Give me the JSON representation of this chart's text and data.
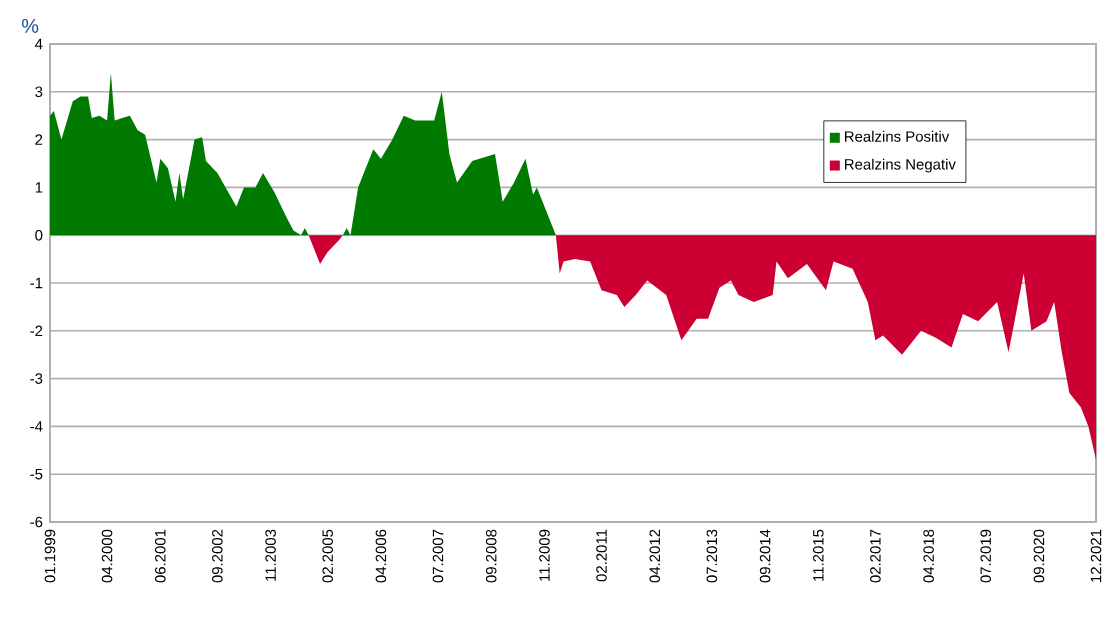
{
  "chart_data": {
    "type": "area",
    "ylabel": "%",
    "legend": "top right",
    "grid": "y",
    "xlim": [
      "1999-01",
      "2021-12"
    ],
    "ylim": [
      -6,
      4
    ],
    "yticks": [
      -6,
      -5,
      -4,
      -3,
      -2,
      -1,
      0,
      1,
      2,
      3,
      4
    ],
    "xticks": [
      {
        "value": "1999-01",
        "label": "01.1999"
      },
      {
        "value": "2000-04",
        "label": "04.2000"
      },
      {
        "value": "2001-06",
        "label": "06.2001"
      },
      {
        "value": "2002-09",
        "label": "09.2002"
      },
      {
        "value": "2003-11",
        "label": "11.2003"
      },
      {
        "value": "2005-02",
        "label": "02.2005"
      },
      {
        "value": "2006-04",
        "label": "04.2006"
      },
      {
        "value": "2007-07",
        "label": "07.2007"
      },
      {
        "value": "2008-09",
        "label": "09.2008"
      },
      {
        "value": "2009-11",
        "label": "11.2009"
      },
      {
        "value": "2011-02",
        "label": "02.2011"
      },
      {
        "value": "2012-04",
        "label": "04.2012"
      },
      {
        "value": "2013-07",
        "label": "07.2013"
      },
      {
        "value": "2014-09",
        "label": "09.2014"
      },
      {
        "value": "2015-11",
        "label": "11.2015"
      },
      {
        "value": "2017-02",
        "label": "02.2017"
      },
      {
        "value": "2018-04",
        "label": "04.2018"
      },
      {
        "value": "2019-07",
        "label": "07.2019"
      },
      {
        "value": "2020-09",
        "label": "09.2020"
      },
      {
        "value": "2021-12",
        "label": "12.2021"
      }
    ],
    "series": [
      {
        "name": "Realzins Positiv",
        "color": "#007a00",
        "x": [
          "1999-01",
          "1999-02",
          "1999-04",
          "1999-07",
          "1999-09",
          "1999-11",
          "1999-12",
          "2000-02",
          "2000-04",
          "2000-05",
          "2000-06",
          "2000-08",
          "2000-10",
          "2000-12",
          "2001-02",
          "2001-05",
          "2001-06",
          "2001-08",
          "2001-10",
          "2001-11",
          "2001-12",
          "2002-03",
          "2002-05",
          "2002-06",
          "2002-09",
          "2003-02",
          "2003-04",
          "2003-07",
          "2003-09",
          "2003-12",
          "2004-03",
          "2004-05",
          "2004-07",
          "2004-08",
          "2004-09",
          "2005-06",
          "2005-07",
          "2005-08",
          "2005-10",
          "2005-12",
          "2006-02",
          "2006-04",
          "2006-07",
          "2006-10",
          "2007-01",
          "2007-06",
          "2007-08",
          "2007-10",
          "2007-12",
          "2008-04",
          "2008-10",
          "2008-12",
          "2009-03",
          "2009-06",
          "2009-08",
          "2009-09",
          "2010-02"
        ],
        "values": [
          2.5,
          2.6,
          2.0,
          2.8,
          2.9,
          2.9,
          2.45,
          2.5,
          2.4,
          3.4,
          2.4,
          2.45,
          2.5,
          2.2,
          2.1,
          1.1,
          1.6,
          1.4,
          0.7,
          1.3,
          0.75,
          2.0,
          2.05,
          1.55,
          1.3,
          0.6,
          1.0,
          1.0,
          1.3,
          0.9,
          0.4,
          0.1,
          0.0,
          0.15,
          0.0,
          0.0,
          0.15,
          0.0,
          1.0,
          1.4,
          1.8,
          1.6,
          2.0,
          2.5,
          2.4,
          2.4,
          3.0,
          1.7,
          1.1,
          1.55,
          1.7,
          0.7,
          1.1,
          1.6,
          0.85,
          1.0,
          0.0
        ]
      },
      {
        "name": "Realzins Negativ",
        "color": "#cc0033",
        "x": [
          "2004-09",
          "2004-12",
          "2005-02",
          "2005-05",
          "2005-06",
          "2010-02",
          "2010-03",
          "2010-04",
          "2010-07",
          "2010-11",
          "2011-02",
          "2011-06",
          "2011-08",
          "2011-11",
          "2012-02",
          "2012-07",
          "2012-11",
          "2013-03",
          "2013-06",
          "2013-09",
          "2013-12",
          "2014-02",
          "2014-06",
          "2014-11",
          "2014-12",
          "2015-03",
          "2015-08",
          "2016-01",
          "2016-03",
          "2016-08",
          "2016-12",
          "2017-02",
          "2017-04",
          "2017-09",
          "2018-02",
          "2018-06",
          "2018-10",
          "2019-01",
          "2019-05",
          "2019-10",
          "2020-01",
          "2020-05",
          "2020-07",
          "2020-11",
          "2021-01",
          "2021-03",
          "2021-05",
          "2021-08",
          "2021-10",
          "2021-12"
        ],
        "values": [
          0.0,
          -0.6,
          -0.35,
          -0.1,
          0.0,
          0.0,
          -0.8,
          -0.55,
          -0.5,
          -0.55,
          -1.15,
          -1.25,
          -1.5,
          -1.25,
          -0.95,
          -1.25,
          -2.2,
          -1.75,
          -1.75,
          -1.1,
          -0.95,
          -1.25,
          -1.4,
          -1.25,
          -0.55,
          -0.9,
          -0.6,
          -1.15,
          -0.55,
          -0.7,
          -1.4,
          -2.2,
          -2.1,
          -2.5,
          -2.0,
          -2.15,
          -2.35,
          -1.65,
          -1.8,
          -1.4,
          -2.45,
          -0.8,
          -2.0,
          -1.8,
          -1.4,
          -2.45,
          -3.3,
          -3.6,
          -4.0,
          -4.7
        ]
      }
    ]
  }
}
